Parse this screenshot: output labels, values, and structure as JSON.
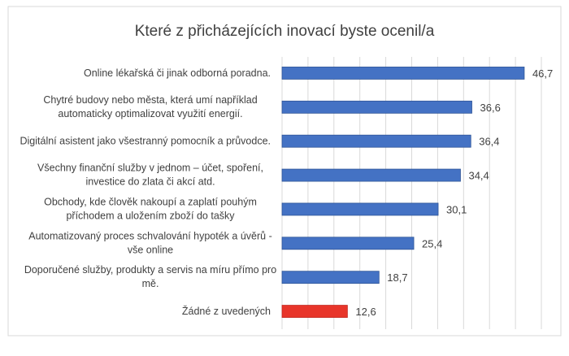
{
  "chart_data": {
    "type": "bar",
    "orientation": "horizontal",
    "title": "Které z přicházejících inovací byste ocenil/a",
    "categories": [
      [
        "Online lékařská či jinak odborná poradna."
      ],
      [
        "Chytré budovy nebo města, která umí například",
        "automaticky optimalizovat využití energií."
      ],
      [
        "Digitální asistent jako všestranný pomocník a průvodce."
      ],
      [
        "Všechny finanční služby v jednom – účet, spoření,",
        "investice do zlata či akcí atd."
      ],
      [
        "Obchody, kde člověk nakoupí a zaplatí pouhým",
        "příchodem a uložením zboží do tašky"
      ],
      [
        "Automatizovaný proces schvalování hypoték a úvěrů -",
        "vše online"
      ],
      [
        "Doporučené služby, produkty a servis na míru přímo pro",
        "mě."
      ],
      [
        "Žádné z uvedených"
      ]
    ],
    "values": [
      46.7,
      36.6,
      36.4,
      34.4,
      30.1,
      25.4,
      18.7,
      12.6
    ],
    "data_labels": [
      "46,7",
      "36,6",
      "36,4",
      "34,4",
      "30,1",
      "25,4",
      "18,7",
      "12,6"
    ],
    "colors": [
      "#4472C4",
      "#4472C4",
      "#4472C4",
      "#4472C4",
      "#4472C4",
      "#4472C4",
      "#4472C4",
      "#E8352A"
    ],
    "xlim": [
      0,
      50
    ],
    "grid_step": 5,
    "grid": true,
    "legend": "none"
  }
}
